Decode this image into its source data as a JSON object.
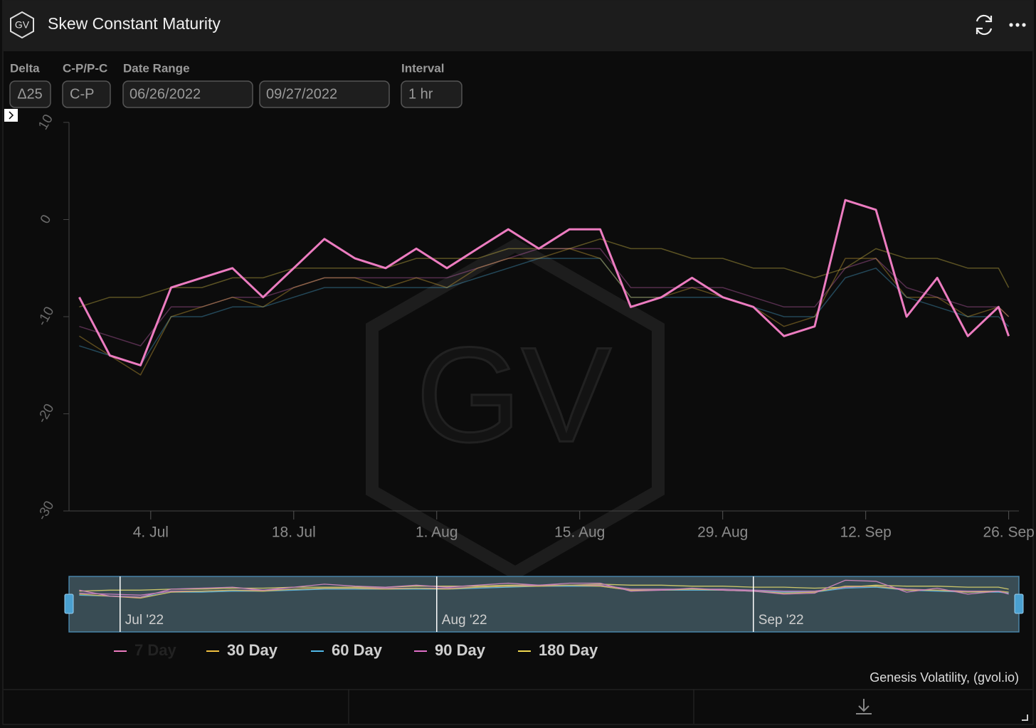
{
  "header": {
    "logo": "GV",
    "title": "Skew Constant Maturity"
  },
  "controls": [
    {
      "label": "Delta",
      "value": "Δ25"
    },
    {
      "label": "C-P/P-C",
      "value": "C-P"
    },
    {
      "label": "Date Range",
      "value": "06/26/2022"
    },
    {
      "value": "09/27/2022"
    },
    {
      "label": "Interval",
      "value": "1 hr"
    }
  ],
  "watermark": "GV",
  "credits": "Genesis Volatility, (gvol.io)",
  "chart_data": {
    "type": "line",
    "x": [
      "2022-06-27",
      "2022-06-30",
      "2022-07-03",
      "2022-07-06",
      "2022-07-09",
      "2022-07-12",
      "2022-07-15",
      "2022-07-18",
      "2022-07-21",
      "2022-07-24",
      "2022-07-27",
      "2022-07-30",
      "2022-08-02",
      "2022-08-05",
      "2022-08-08",
      "2022-08-11",
      "2022-08-14",
      "2022-08-17",
      "2022-08-20",
      "2022-08-23",
      "2022-08-26",
      "2022-08-29",
      "2022-09-01",
      "2022-09-04",
      "2022-09-07",
      "2022-09-10",
      "2022-09-13",
      "2022-09-16",
      "2022-09-19",
      "2022-09-22",
      "2022-09-25",
      "2022-09-26"
    ],
    "series": [
      {
        "name": "7 Day",
        "color": "#ec7cc0",
        "values": [
          -8,
          -14,
          -15,
          -7,
          -6,
          -5,
          -8,
          -5,
          -2,
          -4,
          -5,
          -3,
          -5,
          -3,
          -1,
          -3,
          -1,
          -1,
          -9,
          -8,
          -6,
          -8,
          -9,
          -12,
          -11,
          2,
          1,
          -10,
          -6,
          -12,
          -9,
          -12
        ]
      },
      {
        "name": "30 Day",
        "color": "#f0c040",
        "values": [
          -12,
          -14,
          -16,
          -10,
          -9,
          -8,
          -9,
          -7,
          -6,
          -6,
          -7,
          -6,
          -7,
          -5,
          -4,
          -4,
          -3,
          -4,
          -8,
          -8,
          -7,
          -8,
          -9,
          -11,
          -10,
          -4,
          -4,
          -8,
          -8,
          -10,
          -9,
          -10
        ]
      },
      {
        "name": "60 Day",
        "color": "#50b8e8",
        "values": [
          -13,
          -14,
          -15,
          -10,
          -10,
          -9,
          -9,
          -8,
          -7,
          -7,
          -7,
          -7,
          -7,
          -6,
          -5,
          -4,
          -4,
          -4,
          -8,
          -8,
          -8,
          -8,
          -9,
          -10,
          -10,
          -6,
          -5,
          -8,
          -9,
          -10,
          -10,
          -11
        ]
      },
      {
        "name": "90 Day",
        "color": "#e070c8",
        "values": [
          -11,
          -12,
          -13,
          -9,
          -9,
          -8,
          -8,
          -7,
          -6,
          -6,
          -6,
          -6,
          -6,
          -5,
          -4,
          -3,
          -3,
          -3,
          -7,
          -7,
          -7,
          -7,
          -8,
          -9,
          -9,
          -5,
          -4,
          -7,
          -8,
          -9,
          -9,
          -10
        ]
      },
      {
        "name": "180 Day",
        "color": "#f0d850",
        "values": [
          -9,
          -8,
          -8,
          -7,
          -7,
          -6,
          -6,
          -5,
          -5,
          -5,
          -5,
          -4,
          -4,
          -4,
          -3,
          -3,
          -3,
          -2,
          -3,
          -3,
          -4,
          -4,
          -5,
          -5,
          -6,
          -5,
          -3,
          -4,
          -4,
          -5,
          -5,
          -7
        ]
      }
    ],
    "xlim": [
      "2022-06-26",
      "2022-09-27"
    ],
    "xticks": [
      {
        "value": "2022-07-04",
        "label": "4. Jul"
      },
      {
        "value": "2022-07-18",
        "label": "18. Jul"
      },
      {
        "value": "2022-08-01",
        "label": "1. Aug"
      },
      {
        "value": "2022-08-15",
        "label": "15. Aug"
      },
      {
        "value": "2022-08-29",
        "label": "29. Aug"
      },
      {
        "value": "2022-09-12",
        "label": "12. Sep"
      },
      {
        "value": "2022-09-26",
        "label": "26. Sep"
      }
    ],
    "ylim": [
      -30,
      10
    ],
    "yticks": [
      -30,
      -20,
      -10,
      0,
      10
    ],
    "navigator_xticks": [
      {
        "value": "2022-07-01",
        "label": "Jul '22"
      },
      {
        "value": "2022-08-01",
        "label": "Aug '22"
      },
      {
        "value": "2022-09-01",
        "label": "Sep '22"
      }
    ],
    "legend": "bottom",
    "grid": false
  }
}
